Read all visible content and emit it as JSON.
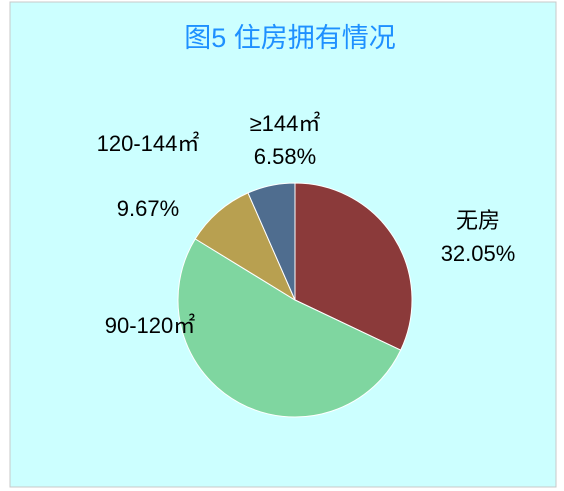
{
  "chart_data": {
    "type": "pie",
    "title": "图5 住房拥有情况",
    "categories": [
      "无房",
      "90-120㎡",
      "120-144㎡",
      "≥144㎡"
    ],
    "values": [
      32.05,
      51.7,
      9.67,
      6.58
    ],
    "value_labels": [
      "32.05%",
      null,
      "9.67%",
      "6.58%"
    ],
    "colors": [
      "#8b3a3a",
      "#7fd6a0",
      "#b8a050",
      "#4f6d8f"
    ]
  }
}
